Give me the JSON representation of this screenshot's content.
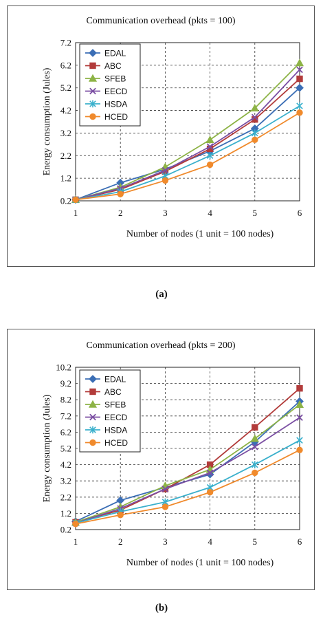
{
  "panels": {
    "a": {
      "tag": "(a)"
    },
    "b": {
      "tag": "(b)"
    }
  },
  "series_colors": {
    "EDAL": "#3b6eb5",
    "ABC": "#b23b3a",
    "SFEB": "#8db346",
    "EECD": "#7b4fa3",
    "HSDA": "#3ab0cc",
    "HCED": "#f08a2c"
  },
  "series_markers": {
    "EDAL": "diamond",
    "ABC": "square",
    "SFEB": "triangle",
    "EECD": "x",
    "HSDA": "asterisk",
    "HCED": "circle"
  },
  "chart_data": [
    {
      "type": "line",
      "title": "Communication overhead (pkts = 100)",
      "xlabel": "Number of nodes (1 unit = 100 nodes)",
      "ylabel": "Energy consumption (Jules)",
      "x": [
        1,
        2,
        3,
        4,
        5,
        6
      ],
      "xticks": [
        "1",
        "2",
        "3",
        "4",
        "5",
        "6"
      ],
      "ylim": [
        0.2,
        7.2
      ],
      "yticks": [
        "0.2",
        "1.2",
        "2.2",
        "3.2",
        "4.2",
        "5.2",
        "6.2",
        "7.2"
      ],
      "grid": true,
      "legend_position": "top-left",
      "series": [
        {
          "name": "EDAL",
          "values": [
            0.25,
            1.0,
            1.6,
            2.4,
            3.4,
            5.2
          ]
        },
        {
          "name": "ABC",
          "values": [
            0.25,
            0.7,
            1.5,
            2.5,
            3.8,
            5.6
          ]
        },
        {
          "name": "SFEB",
          "values": [
            0.25,
            0.8,
            1.7,
            2.9,
            4.3,
            6.3
          ]
        },
        {
          "name": "EECD",
          "values": [
            0.25,
            0.75,
            1.55,
            2.6,
            3.9,
            6.0
          ]
        },
        {
          "name": "HSDA",
          "values": [
            0.25,
            0.6,
            1.3,
            2.2,
            3.2,
            4.4
          ]
        },
        {
          "name": "HCED",
          "values": [
            0.25,
            0.5,
            1.1,
            1.8,
            2.9,
            4.1
          ]
        }
      ]
    },
    {
      "type": "line",
      "title": "Communication overhead (pkts = 200)",
      "xlabel": "Number of nodes (1 unit = 100 nodes)",
      "ylabel": "Energy consumption (Jules)",
      "x": [
        1,
        2,
        3,
        4,
        5,
        6
      ],
      "xticks": [
        "1",
        "2",
        "3",
        "4",
        "5",
        "6"
      ],
      "ylim": [
        0.2,
        10.2
      ],
      "yticks": [
        "0.2",
        "1.2",
        "2.2",
        "3.2",
        "4.2",
        "5.2",
        "6.2",
        "7.2",
        "8.2",
        "9.2",
        "10.2"
      ],
      "grid": true,
      "legend_position": "top-left",
      "series": [
        {
          "name": "EDAL",
          "values": [
            0.7,
            2.0,
            2.8,
            3.6,
            5.6,
            8.1
          ]
        },
        {
          "name": "ABC",
          "values": [
            0.65,
            1.4,
            2.7,
            4.2,
            6.5,
            8.9
          ]
        },
        {
          "name": "SFEB",
          "values": [
            0.65,
            1.6,
            2.9,
            3.9,
            5.8,
            7.9
          ]
        },
        {
          "name": "EECD",
          "values": [
            0.6,
            1.5,
            2.7,
            3.7,
            5.3,
            7.1
          ]
        },
        {
          "name": "HSDA",
          "values": [
            0.6,
            1.3,
            1.9,
            2.8,
            4.2,
            5.7
          ]
        },
        {
          "name": "HCED",
          "values": [
            0.55,
            1.1,
            1.6,
            2.5,
            3.7,
            5.1
          ]
        }
      ]
    }
  ]
}
